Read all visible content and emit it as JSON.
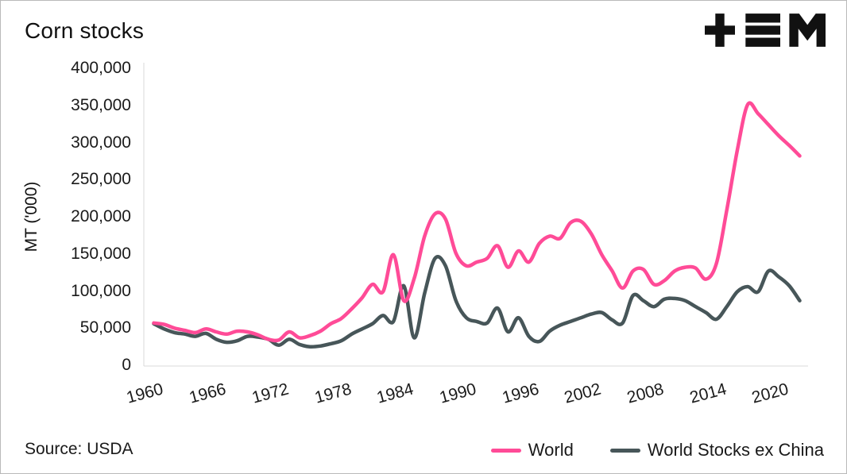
{
  "header": {
    "title": "Corn stocks",
    "logo_icon": "tem-logo"
  },
  "footer": {
    "source": "Source: USDA"
  },
  "colors": {
    "world": "#ff4b97",
    "world_ex_china": "#475659",
    "text": "#1a1a1a",
    "axis": "#d8d8d8"
  },
  "chart_data": {
    "type": "line",
    "title": "Corn stocks",
    "xlabel": "",
    "ylabel": "MT ('000)",
    "ylim": [
      0,
      400000
    ],
    "ytick_step": 50000,
    "xlim": [
      1959.2,
      2022.8
    ],
    "xticks": [
      1960,
      1966,
      1972,
      1978,
      1984,
      1990,
      1996,
      2002,
      2008,
      2014,
      2020
    ],
    "grid": false,
    "legend_position": "bottom-right",
    "x": [
      1960,
      1961,
      1962,
      1963,
      1964,
      1965,
      1966,
      1967,
      1968,
      1969,
      1970,
      1971,
      1972,
      1973,
      1974,
      1975,
      1976,
      1977,
      1978,
      1979,
      1980,
      1981,
      1982,
      1983,
      1984,
      1985,
      1986,
      1987,
      1988,
      1989,
      1990,
      1991,
      1992,
      1993,
      1994,
      1995,
      1996,
      1997,
      1998,
      1999,
      2000,
      2001,
      2002,
      2003,
      2004,
      2005,
      2006,
      2007,
      2008,
      2009,
      2010,
      2011,
      2012,
      2013,
      2014,
      2015,
      2016,
      2017,
      2018,
      2019,
      2020,
      2021,
      2022
    ],
    "series": [
      {
        "name": "World",
        "color": "#ff4b97",
        "values": [
          58000,
          56000,
          51000,
          48000,
          45000,
          50000,
          46000,
          43000,
          47000,
          46000,
          42000,
          36000,
          35000,
          46000,
          38000,
          41000,
          47000,
          57000,
          64000,
          77000,
          92000,
          110000,
          100000,
          150000,
          88000,
          118000,
          175000,
          205000,
          198000,
          152000,
          135000,
          140000,
          145000,
          162000,
          133000,
          155000,
          140000,
          165000,
          175000,
          172000,
          193000,
          195000,
          178000,
          150000,
          128000,
          105000,
          128000,
          130000,
          110000,
          115000,
          128000,
          133000,
          132000,
          117000,
          138000,
          210000,
          290000,
          352000,
          340000,
          325000,
          310000,
          297000,
          283000
        ]
      },
      {
        "name": "World Stocks ex China",
        "color": "#475659",
        "values": [
          57000,
          50000,
          45000,
          43000,
          40000,
          44000,
          36000,
          32000,
          34000,
          40000,
          39000,
          36000,
          28000,
          36000,
          29000,
          26000,
          27000,
          30000,
          34000,
          43000,
          50000,
          57000,
          68000,
          60000,
          108000,
          38000,
          98000,
          145000,
          135000,
          88000,
          65000,
          60000,
          58000,
          78000,
          46000,
          65000,
          40000,
          33000,
          47000,
          55000,
          60000,
          65000,
          70000,
          72000,
          62000,
          58000,
          95000,
          88000,
          80000,
          90000,
          91000,
          88000,
          80000,
          72000,
          63000,
          80000,
          100000,
          107000,
          100000,
          128000,
          120000,
          108000,
          88000
        ]
      }
    ]
  }
}
